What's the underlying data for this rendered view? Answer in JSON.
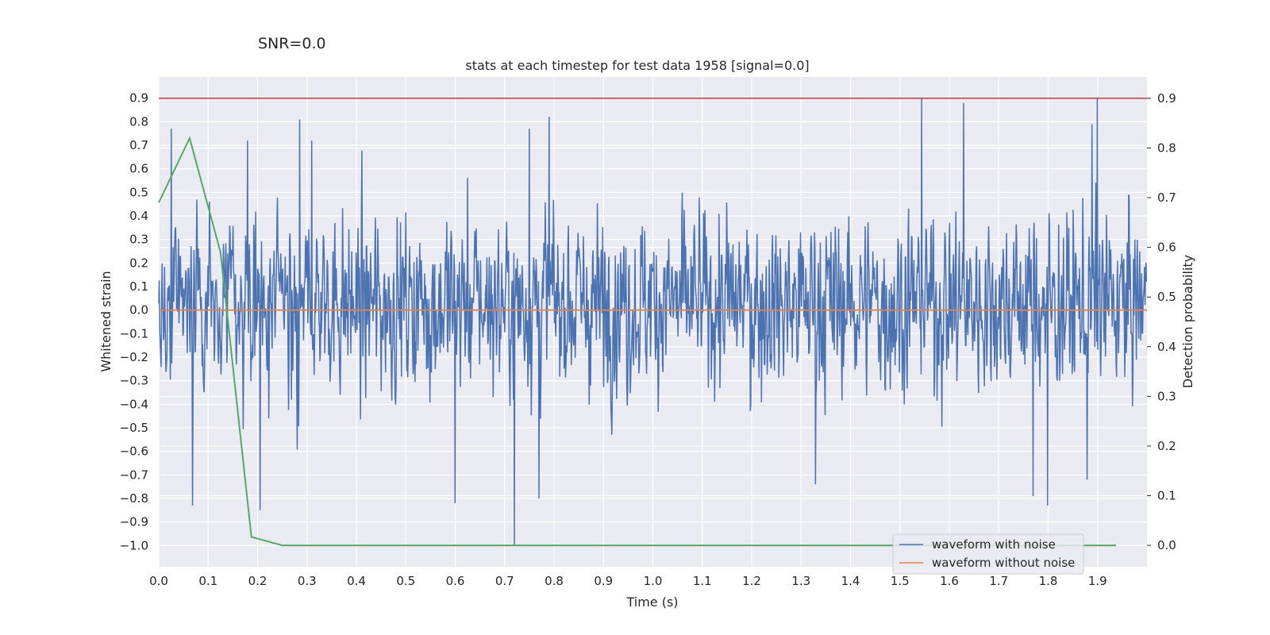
{
  "chart_data": {
    "type": "line",
    "suptitle": "SNR=0.0",
    "title": "stats at each timestep for test data 1958 [signal=0.0]",
    "xlabel": "Time (s)",
    "ylabel_left": "Whitened strain",
    "ylabel_right": "Detection probability",
    "xlim": [
      0.0,
      2.0
    ],
    "ylim_left": [
      -1.09,
      0.99
    ],
    "ylim_right": [
      -0.043,
      0.943
    ],
    "x_ticks": [
      "0.0",
      "0.1",
      "0.2",
      "0.3",
      "0.4",
      "0.5",
      "0.6",
      "0.7",
      "0.8",
      "0.9",
      "1.0",
      "1.1",
      "1.2",
      "1.3",
      "1.4",
      "1.5",
      "1.6",
      "1.7",
      "1.8",
      "1.9"
    ],
    "y_ticks_left": [
      "0.9",
      "0.8",
      "0.7",
      "0.6",
      "0.5",
      "0.4",
      "0.3",
      "0.2",
      "0.1",
      "0.0",
      "-0.1",
      "-0.2",
      "-0.3",
      "-0.4",
      "-0.5",
      "-0.6",
      "-0.7",
      "-0.8",
      "-0.9",
      "-1.0"
    ],
    "y_ticks_right": [
      "0.9",
      "0.8",
      "0.7",
      "0.6",
      "0.5",
      "0.4",
      "0.3",
      "0.2",
      "0.1",
      "0.0"
    ],
    "threshold": {
      "value": 0.9,
      "color": "#c03d3e"
    },
    "series": [
      {
        "name": "waveform with noise",
        "axis": "left",
        "color": "#4c72b0",
        "n_samples": 2048,
        "seed": 1958,
        "noise_sigma": 0.26,
        "highlights": [
          {
            "x": 0.025,
            "y": 0.77
          },
          {
            "x": 0.068,
            "y": -0.83
          },
          {
            "x": 0.18,
            "y": 0.72
          },
          {
            "x": 0.205,
            "y": -0.85
          },
          {
            "x": 0.285,
            "y": 0.81
          },
          {
            "x": 0.31,
            "y": 0.72
          },
          {
            "x": 0.6,
            "y": -0.82
          },
          {
            "x": 0.72,
            "y": -1.0
          },
          {
            "x": 0.75,
            "y": 0.77
          },
          {
            "x": 0.79,
            "y": 0.82
          },
          {
            "x": 0.77,
            "y": -0.8
          },
          {
            "x": 1.33,
            "y": -0.74
          },
          {
            "x": 1.545,
            "y": 0.9
          },
          {
            "x": 1.63,
            "y": 0.88
          },
          {
            "x": 1.77,
            "y": -0.79
          },
          {
            "x": 1.8,
            "y": -0.83
          },
          {
            "x": 1.89,
            "y": 0.79
          },
          {
            "x": 1.9,
            "y": 0.9
          },
          {
            "x": 1.88,
            "y": -0.72
          }
        ]
      },
      {
        "name": "waveform without noise",
        "axis": "left",
        "color": "#dd8452",
        "x": [
          0.0,
          2.0
        ],
        "y": [
          0.0,
          0.0
        ]
      },
      {
        "name": "Detection probability",
        "axis": "right",
        "color": "#55a868",
        "x": [
          0.0,
          0.0625,
          0.125,
          0.1875,
          0.25,
          0.3125,
          0.375,
          0.4375,
          0.5,
          0.5625,
          0.625,
          0.6875,
          0.75,
          0.8125,
          0.875,
          0.9375,
          1.0,
          1.0625,
          1.125,
          1.1875,
          1.25,
          1.3125,
          1.375,
          1.4375,
          1.5,
          1.5625,
          1.625,
          1.6875,
          1.75,
          1.8125,
          1.875,
          1.9375
        ],
        "y": [
          0.69,
          0.82,
          0.59,
          0.017,
          0.0,
          0.0,
          0.0,
          0.0,
          0.0,
          0.0,
          0.0,
          0.0,
          0.0,
          0.0,
          0.0,
          0.0,
          0.0,
          0.0,
          0.0,
          0.0,
          0.0,
          0.0,
          0.0,
          0.0,
          0.0,
          0.0,
          0.0,
          0.0,
          0.0,
          0.0,
          0.0,
          0.0
        ]
      }
    ],
    "legend": {
      "location": "lower-right",
      "entries": [
        {
          "label": "waveform with noise",
          "color": "#4c72b0"
        },
        {
          "label": "waveform without noise",
          "color": "#dd8452"
        }
      ]
    },
    "grid": true,
    "background": "#eaeaf2"
  }
}
